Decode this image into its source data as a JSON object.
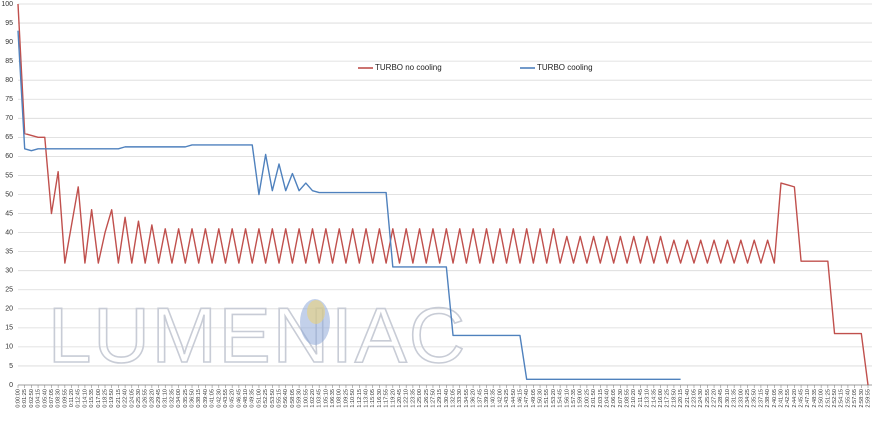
{
  "chart_data": {
    "type": "line",
    "watermark": "LUMENIAC",
    "categories": [
      "0:00:00",
      "0:01:25",
      "0:02:50",
      "0:04:15",
      "0:05:40",
      "0:07:05",
      "0:08:30",
      "0:09:55",
      "0:11:20",
      "0:12:45",
      "0:14:10",
      "0:15:35",
      "0:17:00",
      "0:18:25",
      "0:19:50",
      "0:21:15",
      "0:22:40",
      "0:24:05",
      "0:25:30",
      "0:26:55",
      "0:28:20",
      "0:29:45",
      "0:31:10",
      "0:32:35",
      "0:34:00",
      "0:35:25",
      "0:36:50",
      "0:38:15",
      "0:39:40",
      "0:41:05",
      "0:42:30",
      "0:43:55",
      "0:45:20",
      "0:46:45",
      "0:48:10",
      "0:49:35",
      "0:51:00",
      "0:52:25",
      "0:53:50",
      "0:55:15",
      "0:56:40",
      "0:58:05",
      "0:59:30",
      "1:00:55",
      "1:02:20",
      "1:03:45",
      "1:05:10",
      "1:06:35",
      "1:08:00",
      "1:09:25",
      "1:10:50",
      "1:12:15",
      "1:13:40",
      "1:15:05",
      "1:16:30",
      "1:17:55",
      "1:19:20",
      "1:20:45",
      "1:22:10",
      "1:23:35",
      "1:25:00",
      "1:26:25",
      "1:27:50",
      "1:29:15",
      "1:30:40",
      "1:32:05",
      "1:33:30",
      "1:34:55",
      "1:36:20",
      "1:37:45",
      "1:39:10",
      "1:40:35",
      "1:42:00",
      "1:43:25",
      "1:44:50",
      "1:46:15",
      "1:47:40",
      "1:49:05",
      "1:50:30",
      "1:51:55",
      "1:53:20",
      "1:54:45",
      "1:56:10",
      "1:57:35",
      "1:59:00",
      "2:00:25",
      "2:01:50",
      "2:03:15",
      "2:04:40",
      "2:06:05",
      "2:07:30",
      "2:08:55",
      "2:10:20",
      "2:11:45",
      "2:13:10",
      "2:14:35",
      "2:16:00",
      "2:17:25",
      "2:18:50",
      "2:20:15",
      "2:21:40",
      "2:23:05",
      "2:24:30",
      "2:25:55",
      "2:27:20",
      "2:28:45",
      "2:30:10",
      "2:31:35",
      "2:33:00",
      "2:34:25",
      "2:35:50",
      "2:37:15",
      "2:38:40",
      "2:40:05",
      "2:41:30",
      "2:42:55",
      "2:44:20",
      "2:45:45",
      "2:47:10",
      "2:48:35",
      "2:50:00",
      "2:51:25",
      "2:52:50",
      "2:54:15",
      "2:55:40",
      "2:57:05",
      "2:58:30",
      "2:59:55"
    ],
    "series": [
      {
        "name": "TURBO no cooling",
        "color": "#c0504d",
        "values": [
          100,
          66,
          65.5,
          65,
          65,
          45,
          56,
          32,
          42,
          52,
          32,
          46,
          32,
          40,
          46,
          32,
          44,
          32,
          43,
          32,
          42,
          32,
          41,
          32,
          41,
          32,
          41,
          32,
          41,
          32,
          41,
          32,
          41,
          32,
          41,
          32,
          41,
          32,
          41,
          32,
          41,
          32,
          41,
          32,
          41,
          32,
          41,
          32,
          41,
          32,
          41,
          32,
          41,
          32,
          41,
          32,
          41,
          32,
          41,
          32,
          41,
          32,
          41,
          32,
          41,
          32,
          41,
          32,
          41,
          32,
          41,
          32,
          41,
          32,
          41,
          32,
          41,
          32,
          41,
          32,
          41,
          32,
          39,
          32,
          39,
          32,
          39,
          32,
          39,
          32,
          39,
          32,
          39,
          32,
          39,
          32,
          39,
          32,
          38,
          32,
          38,
          32,
          38,
          32,
          38,
          32,
          38,
          32,
          38,
          32,
          38,
          32,
          38,
          32,
          53,
          52.5,
          52,
          32.5,
          32.5,
          32.5,
          32.5,
          32.5,
          13.5,
          13.5,
          13.5,
          13.5,
          13.5,
          0
        ]
      },
      {
        "name": "TURBO cooling",
        "color": "#4f81bd",
        "values": [
          93,
          62,
          61.5,
          62,
          62,
          62,
          62,
          62,
          62,
          62,
          62,
          62,
          62,
          62,
          62,
          62,
          62.5,
          62.5,
          62.5,
          62.5,
          62.5,
          62.5,
          62.5,
          62.5,
          62.5,
          62.5,
          63,
          63,
          63,
          63,
          63,
          63,
          63,
          63,
          63,
          63,
          50,
          60.5,
          51,
          58,
          51,
          55.5,
          51,
          53,
          51,
          50.5,
          50.5,
          50.5,
          50.5,
          50.5,
          50.5,
          50.5,
          50.5,
          50.5,
          50.5,
          50.5,
          31,
          31,
          31,
          31,
          31,
          31,
          31,
          31,
          31,
          13,
          13,
          13,
          13,
          13,
          13,
          13,
          13,
          13,
          13,
          13,
          1.5,
          1.5,
          1.5,
          1.5,
          1.5,
          1.5,
          1.5,
          1.5,
          1.5,
          1.5,
          1.5,
          1.5,
          1.5,
          1.5,
          1.5,
          1.5,
          1.5,
          1.5,
          1.5,
          1.5,
          1.5,
          1.5,
          1.5,
          1.5,
          null,
          null,
          null,
          null,
          null,
          null,
          null,
          null,
          null,
          null,
          null,
          null,
          null,
          null,
          null,
          null,
          null,
          null,
          null,
          null,
          null,
          null,
          null,
          null,
          null,
          null,
          null,
          null
        ]
      }
    ],
    "ylim": [
      0,
      100
    ],
    "yticks": [
      0,
      5,
      10,
      15,
      20,
      25,
      30,
      35,
      40,
      45,
      50,
      55,
      60,
      65,
      70,
      75,
      80,
      85,
      90,
      95,
      100
    ],
    "grid": true,
    "legend": "top"
  }
}
